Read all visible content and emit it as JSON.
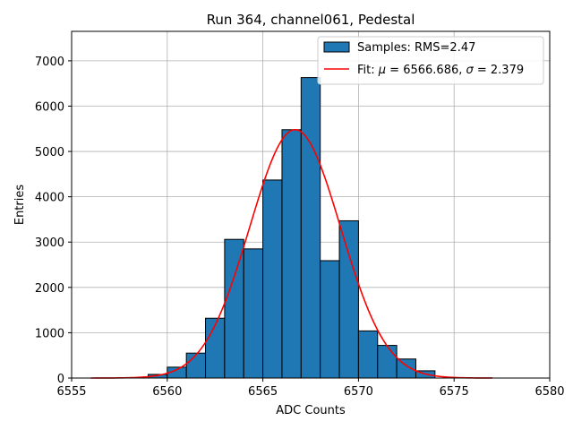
{
  "chart_data": {
    "type": "bar",
    "title": "Run 364, channel061, Pedestal",
    "xlabel": "ADC Counts",
    "ylabel": "Entries",
    "xlim": [
      6555,
      6580
    ],
    "ylim": [
      0,
      7650
    ],
    "xticks": [
      6555,
      6560,
      6565,
      6570,
      6575,
      6580
    ],
    "yticks": [
      0,
      1000,
      2000,
      3000,
      4000,
      5000,
      6000,
      7000
    ],
    "grid": true,
    "legend_position": "top-right",
    "histogram": {
      "name": "Samples: RMS=2.47",
      "color": "#1f77b4",
      "bin_width": 1,
      "bin_starts": [
        6559,
        6560,
        6561,
        6562,
        6563,
        6564,
        6565,
        6566,
        6567,
        6568,
        6569,
        6570,
        6571,
        6572,
        6573
      ],
      "values": [
        80,
        240,
        550,
        1320,
        3060,
        2850,
        4370,
        5480,
        6630,
        2590,
        3470,
        1040,
        720,
        420,
        160
      ]
    },
    "fit": {
      "name_prefix": "Fit: ",
      "name_mu": "μ",
      "name_mid": " = 6566.686, ",
      "name_sigma": "σ",
      "name_suffix": " = 2.379",
      "color": "#ff0000",
      "mu": 6566.686,
      "sigma": 2.379,
      "amplitude": 5480,
      "x_range": [
        6556,
        6577
      ]
    }
  }
}
